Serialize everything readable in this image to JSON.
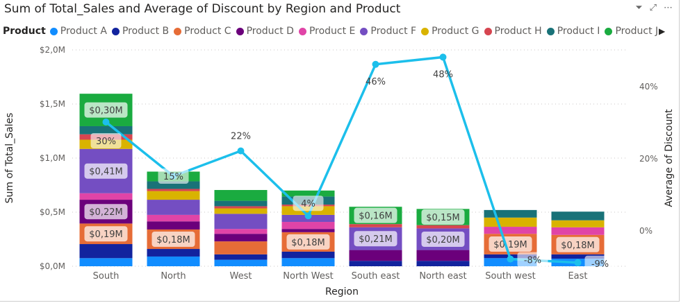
{
  "header": {
    "filter_icon": "filter-icon",
    "focus_icon": "focus-mode-icon",
    "more_icon": "more-options-icon"
  },
  "legend": {
    "title": "Product",
    "next_icon": "triangle-right-icon"
  },
  "chart_data": {
    "type": "combo-stacked-bar-line",
    "title": "Sum of Total_Sales and Average of Discount by Region and Product",
    "xlabel": "Region",
    "ylabel": "Sum of Total_Sales",
    "y2label": "Average of Discount",
    "ylim": [
      0,
      2.0
    ],
    "y2lim": [
      -10,
      50
    ],
    "yticks": [
      "$0,0M",
      "$0,5M",
      "$1,0M",
      "$1,5M",
      "$2,0M"
    ],
    "y2ticks": [
      "0%",
      "20%",
      "40%"
    ],
    "grid": true,
    "legend_position": "top",
    "categories": [
      "South",
      "North",
      "West",
      "North West",
      "South east",
      "North east",
      "South west",
      "East"
    ],
    "series": [
      {
        "name": "Product A",
        "color": "#118DFF",
        "values": [
          0.075,
          0.09,
          0.06,
          0.075,
          0,
          0,
          0.075,
          0.07
        ]
      },
      {
        "name": "Product B",
        "color": "#12239E",
        "values": [
          0.13,
          0.07,
          0.05,
          0.06,
          0.05,
          0.05,
          0.035,
          0.04
        ]
      },
      {
        "name": "Product C",
        "color": "#E66C37",
        "values": [
          0.19,
          0.18,
          0.12,
          0.18,
          0,
          0,
          0.19,
          0.18
        ]
      },
      {
        "name": "Product D",
        "color": "#6B007B",
        "values": [
          0.22,
          0.075,
          0.07,
          0.03,
          0.1,
          0.1,
          0,
          0
        ]
      },
      {
        "name": "Product E",
        "color": "#E044A7",
        "values": [
          0.06,
          0.06,
          0.045,
          0.065,
          0,
          0,
          0.065,
          0.07
        ]
      },
      {
        "name": "Product F",
        "color": "#744EC2",
        "values": [
          0.41,
          0.14,
          0.14,
          0.065,
          0.21,
          0.2,
          0,
          0
        ]
      },
      {
        "name": "Product G",
        "color": "#D9B300",
        "values": [
          0.085,
          0.08,
          0.05,
          0.08,
          0,
          0,
          0.085,
          0.065
        ]
      },
      {
        "name": "Product H",
        "color": "#D64550",
        "values": [
          0.05,
          0.02,
          0.02,
          0.015,
          0.03,
          0.03,
          0,
          0
        ]
      },
      {
        "name": "Product I",
        "color": "#197278",
        "values": [
          0.075,
          0.07,
          0.05,
          0.075,
          0,
          0,
          0.07,
          0.08
        ]
      },
      {
        "name": "Product J",
        "color": "#1AAB40",
        "values": [
          0.3,
          0.09,
          0.1,
          0.055,
          0.16,
          0.15,
          0,
          0
        ]
      }
    ],
    "data_labels": [
      {
        "category": "South",
        "product": "Product J",
        "text": "$0,30M"
      },
      {
        "category": "South",
        "product": "Product F",
        "text": "$0,41M"
      },
      {
        "category": "South",
        "product": "Product D",
        "text": "$0,22M"
      },
      {
        "category": "South",
        "product": "Product C",
        "text": "$0,19M"
      },
      {
        "category": "North",
        "product": "Product C",
        "text": "$0,18M"
      },
      {
        "category": "North West",
        "product": "Product C",
        "text": "$0,18M"
      },
      {
        "category": "South east",
        "product": "Product J",
        "text": "$0,16M"
      },
      {
        "category": "South east",
        "product": "Product F",
        "text": "$0,21M"
      },
      {
        "category": "North east",
        "product": "Product J",
        "text": "$0,15M"
      },
      {
        "category": "North east",
        "product": "Product F",
        "text": "$0,20M"
      },
      {
        "category": "South west",
        "product": "Product C",
        "text": "$0,19M"
      },
      {
        "category": "East",
        "product": "Product C",
        "text": "$0,18M"
      }
    ],
    "line": {
      "name": "Average of Discount",
      "color": "#1CBFEB",
      "values": [
        30,
        15,
        22,
        4,
        46,
        48,
        -8,
        -9
      ],
      "labels": [
        "30%",
        "15%",
        "22%",
        "4%",
        "46%",
        "48%",
        "-8%",
        "-9%"
      ]
    }
  }
}
